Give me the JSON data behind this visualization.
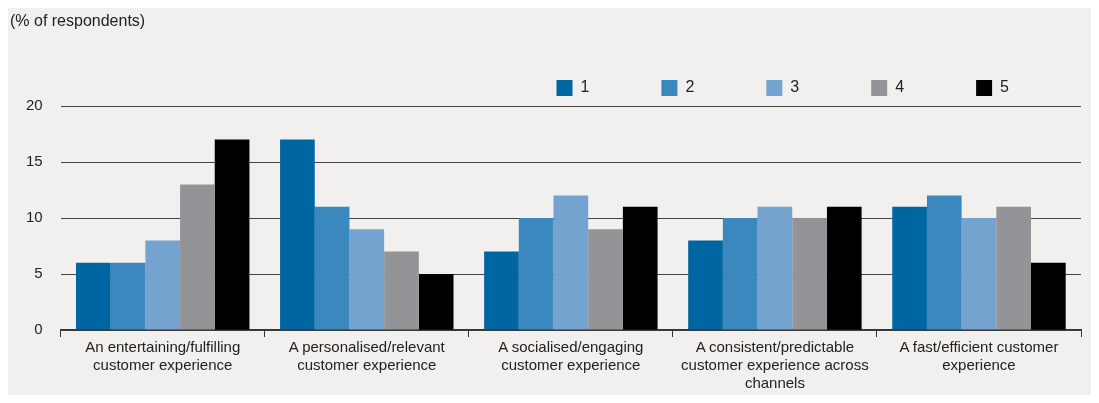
{
  "chart_data": {
    "type": "bar",
    "ylabel": "(% of respondents)",
    "categories": [
      "An entertaining/fulfilling customer experience",
      "A personalised/relevant customer experience",
      "A socialised/engaging customer experience",
      "A consistent/predictable customer experience across channels",
      "A fast/efficient customer experience"
    ],
    "series": [
      {
        "name": "1",
        "color": "#0066a1",
        "values": [
          6,
          17,
          7,
          8,
          11
        ]
      },
      {
        "name": "2",
        "color": "#3b88bf",
        "values": [
          6,
          11,
          10,
          10,
          12
        ]
      },
      {
        "name": "3",
        "color": "#74a3cf",
        "values": [
          8,
          9,
          12,
          11,
          10
        ]
      },
      {
        "name": "4",
        "color": "#939497",
        "values": [
          13,
          7,
          9,
          10,
          11
        ]
      },
      {
        "name": "5",
        "color": "#000000",
        "values": [
          17,
          5,
          11,
          11,
          6
        ]
      }
    ],
    "ylim": [
      0,
      20
    ],
    "yticks": [
      0,
      5,
      10,
      15,
      20
    ],
    "grid": "y",
    "legend": "top right"
  }
}
